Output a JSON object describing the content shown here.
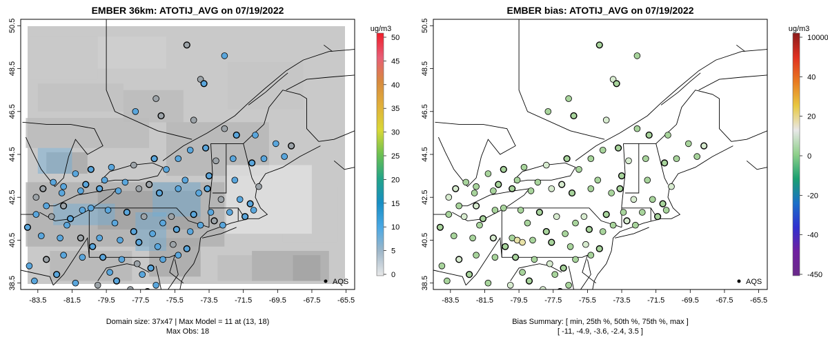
{
  "panels": [
    {
      "title": "EMBER 36km: ATOTIJ_AVG on 07/19/2022",
      "colorbar": {
        "unit": "ug/m3",
        "ticks": [
          "50",
          "45",
          "40",
          "35",
          "30",
          "25",
          "20",
          "15",
          "10",
          "5",
          "0"
        ],
        "gradient": [
          "#ef1d2a",
          "#e85e76",
          "#d78a3f",
          "#e1b03a",
          "#d9d836",
          "#6cc051",
          "#23a488",
          "#178ec4",
          "#4aa8e4",
          "#9fb7c9",
          "#e8e8e8"
        ]
      },
      "legend": {
        "marker_label": "AQS"
      },
      "captions": [
        "Domain size: 37x47 | Max Model = 11 at (13, 18)",
        "Max Obs: 18"
      ],
      "site_fill": "#5aa6dc",
      "site_fill_alt": "#9ca3a8",
      "background": "#c9c9c9"
    },
    {
      "title": "EMBER bias: ATOTIJ_AVG on 07/19/2022",
      "colorbar": {
        "unit": "ug/m3",
        "ticks": [
          "10000",
          "40",
          "20",
          "0",
          "-20",
          "-40",
          "-450"
        ],
        "gradient": [
          "#8b1a1a",
          "#e03020",
          "#e87a20",
          "#e8c840",
          "#e8e8e8",
          "#8ed08a",
          "#1aa070",
          "#1a70c8",
          "#3030d0",
          "#7020a0",
          "#6a2a8a"
        ]
      },
      "legend": {
        "marker_label": "AQS"
      },
      "captions": [
        "Bias Summary: [ min, 25th %, 50th %, 75th %, max ]",
        "[ -11,   -4.9,   -3.6,   -2.4,   3.5 ]"
      ],
      "site_fill": "#a8d49c",
      "site_fill_alt": "#d7ebcf",
      "background": "#ffffff"
    }
  ],
  "map": {
    "x_ticks": [
      "-83.5",
      "-81.5",
      "-79.5",
      "-77.5",
      "-75.5",
      "-73.5",
      "-71.5",
      "-69.5",
      "-67.5",
      "-65.5"
    ],
    "y_ticks": [
      "50.5",
      "48.5",
      "46.5",
      "44.5",
      "42.5",
      "40.5",
      "38.5"
    ]
  },
  "sites": [
    [
      -74.8,
      49.6
    ],
    [
      -72.6,
      49.1
    ],
    [
      -74.0,
      48.0
    ],
    [
      -73.8,
      47.8
    ],
    [
      -76.6,
      47.1
    ],
    [
      -77.8,
      46.5
    ],
    [
      -76.3,
      46.3
    ],
    [
      -74.4,
      46.1
    ],
    [
      -72.6,
      45.7
    ],
    [
      -71.9,
      45.4
    ],
    [
      -70.8,
      45.4
    ],
    [
      -69.6,
      45.0
    ],
    [
      -68.7,
      44.9
    ],
    [
      -69.1,
      44.4
    ],
    [
      -70.3,
      44.3
    ],
    [
      -71.0,
      44.1
    ],
    [
      -72.1,
      44.3
    ],
    [
      -73.1,
      44.2
    ],
    [
      -73.7,
      44.8
    ],
    [
      -74.6,
      44.7
    ],
    [
      -75.3,
      44.3
    ],
    [
      -76.7,
      44.3
    ],
    [
      -77.9,
      44.0
    ],
    [
      -79.2,
      43.9
    ],
    [
      -80.4,
      43.8
    ],
    [
      -81.3,
      43.6
    ],
    [
      -82.6,
      43.2
    ],
    [
      -83.2,
      42.9
    ],
    [
      -82.1,
      42.7
    ],
    [
      -81.0,
      42.8
    ],
    [
      -79.9,
      42.9
    ],
    [
      -78.8,
      42.8
    ],
    [
      -77.6,
      42.9
    ],
    [
      -76.4,
      42.7
    ],
    [
      -75.3,
      42.9
    ],
    [
      -74.1,
      42.7
    ],
    [
      -73.6,
      42.9
    ],
    [
      -72.8,
      42.4
    ],
    [
      -71.7,
      42.4
    ],
    [
      -71.1,
      42.2
    ],
    [
      -70.9,
      41.9
    ],
    [
      -72.3,
      41.8
    ],
    [
      -73.2,
      41.4
    ],
    [
      -74.0,
      41.2
    ],
    [
      -74.6,
      40.9
    ],
    [
      -75.4,
      41.0
    ],
    [
      -76.2,
      41.3
    ],
    [
      -77.3,
      41.6
    ],
    [
      -78.3,
      41.8
    ],
    [
      -79.4,
      41.9
    ],
    [
      -80.4,
      42.0
    ],
    [
      -81.6,
      41.5
    ],
    [
      -82.7,
      41.6
    ],
    [
      -83.6,
      41.7
    ],
    [
      -84.1,
      41.1
    ],
    [
      -83.3,
      40.7
    ],
    [
      -82.2,
      40.6
    ],
    [
      -81.0,
      40.6
    ],
    [
      -79.9,
      40.6
    ],
    [
      -78.7,
      40.5
    ],
    [
      -77.6,
      40.4
    ],
    [
      -76.5,
      40.2
    ],
    [
      -75.6,
      40.3
    ],
    [
      -74.8,
      40.1
    ],
    [
      -75.3,
      39.8
    ],
    [
      -76.2,
      39.6
    ],
    [
      -76.9,
      39.2
    ],
    [
      -77.7,
      39.4
    ],
    [
      -78.6,
      39.6
    ],
    [
      -79.7,
      39.7
    ],
    [
      -80.9,
      39.7
    ],
    [
      -82.0,
      39.8
    ],
    [
      -83.0,
      39.6
    ],
    [
      -84.0,
      39.3
    ],
    [
      -83.7,
      38.6
    ],
    [
      -82.4,
      38.9
    ],
    [
      -81.3,
      38.5
    ],
    [
      -80.0,
      38.4
    ],
    [
      -78.9,
      38.6
    ],
    [
      -77.4,
      38.9
    ],
    [
      -76.6,
      38.4
    ],
    [
      -77.1,
      38.1
    ],
    [
      -78.1,
      38.2
    ],
    [
      -79.3,
      39.0
    ],
    [
      -80.3,
      40.2
    ],
    [
      -81.8,
      41.2
    ],
    [
      -83.0,
      42.1
    ],
    [
      -82.0,
      42.1
    ],
    [
      -80.9,
      41.9
    ],
    [
      -79.0,
      41.3
    ],
    [
      -77.9,
      40.9
    ],
    [
      -76.8,
      40.8
    ],
    [
      -75.7,
      41.6
    ],
    [
      -74.4,
      41.7
    ],
    [
      -73.4,
      41.8
    ],
    [
      -72.7,
      41.2
    ],
    [
      -71.4,
      41.6
    ],
    [
      -70.6,
      43.0
    ],
    [
      -72.0,
      43.3
    ],
    [
      -73.5,
      43.5
    ],
    [
      -74.9,
      43.3
    ],
    [
      -76.0,
      43.8
    ],
    [
      -77.0,
      43.1
    ],
    [
      -78.4,
      43.2
    ],
    [
      -79.6,
      43.3
    ],
    [
      -80.7,
      43.1
    ],
    [
      -82.0,
      43.0
    ],
    [
      -83.6,
      42.5
    ]
  ],
  "model_blocks": [
    [
      -84.0,
      50.0,
      -80.0,
      48.0,
      0.35
    ],
    [
      -80.0,
      50.0,
      -76.0,
      48.5,
      0.25
    ],
    [
      -83.5,
      47.8,
      -78.5,
      46.5,
      0.45
    ],
    [
      -78.5,
      47.5,
      -75.0,
      46.0,
      0.55
    ],
    [
      -84.2,
      46.2,
      -77.0,
      44.8,
      0.55
    ],
    [
      -83.0,
      44.6,
      -80.6,
      43.6,
      0.8
    ],
    [
      -84.2,
      43.2,
      -72.6,
      40.2,
      0.7
    ],
    [
      -80.0,
      42.8,
      -74.0,
      41.0,
      0.9
    ],
    [
      -77.0,
      40.6,
      -74.0,
      38.8,
      0.8
    ],
    [
      -76.0,
      46.0,
      -70.0,
      43.5,
      0.6
    ],
    [
      -72.4,
      48.8,
      -68.0,
      46.6,
      0.4
    ],
    [
      -71.0,
      40.0,
      -66.5,
      38.6,
      0.75
    ],
    [
      -68.6,
      39.8,
      -67.0,
      38.6,
      0.9
    ],
    [
      -73.0,
      39.8,
      -71.0,
      38.6,
      0.5
    ],
    [
      -82.8,
      40.0,
      -78.0,
      38.6,
      0.6
    ],
    [
      -69.2,
      43.0,
      -66.0,
      40.4,
      0.35
    ]
  ]
}
